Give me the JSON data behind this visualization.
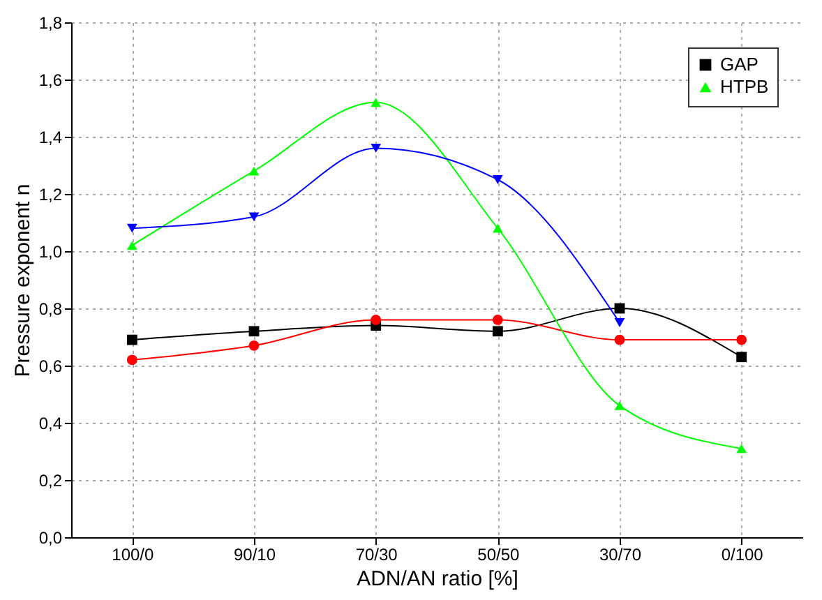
{
  "chart_data": {
    "type": "line",
    "xlabel": "ADN/AN ratio [%]",
    "ylabel": "Pressure exponent n",
    "categories": [
      "100/0",
      "90/10",
      "70/30",
      "50/50",
      "30/70",
      "0/100"
    ],
    "series": [
      {
        "name": "GAP",
        "color": "#000000",
        "marker": "square",
        "values": [
          0.69,
          0.72,
          0.74,
          0.72,
          0.8,
          0.63
        ]
      },
      {
        "color": "#ff0000",
        "marker": "circle",
        "values": [
          0.62,
          0.67,
          0.76,
          0.76,
          0.69,
          0.69
        ]
      },
      {
        "name": "HTPB",
        "color": "#00ff00",
        "marker": "triangle",
        "values": [
          1.02,
          1.28,
          1.52,
          1.08,
          0.46,
          0.31
        ]
      },
      {
        "color": "#0000ff",
        "marker": "triangle-down",
        "values": [
          1.08,
          1.12,
          1.36,
          1.25,
          0.75,
          null
        ]
      }
    ],
    "ylim": [
      0,
      1.8
    ],
    "yticks": [
      {
        "value": 0,
        "label": "0,0"
      },
      {
        "value": 0.2,
        "label": "0,2"
      },
      {
        "value": 0.4,
        "label": "0,4"
      },
      {
        "value": 0.6,
        "label": "0,6"
      },
      {
        "value": 0.8,
        "label": "0,8"
      },
      {
        "value": 1.0,
        "label": "1,0"
      },
      {
        "value": 1.2,
        "label": "1,2"
      },
      {
        "value": 1.4,
        "label": "1,4"
      },
      {
        "value": 1.6,
        "label": "1,6"
      },
      {
        "value": 1.8,
        "label": "1,8"
      }
    ],
    "grid": true,
    "legend": "top right",
    "line_style": "solid"
  }
}
